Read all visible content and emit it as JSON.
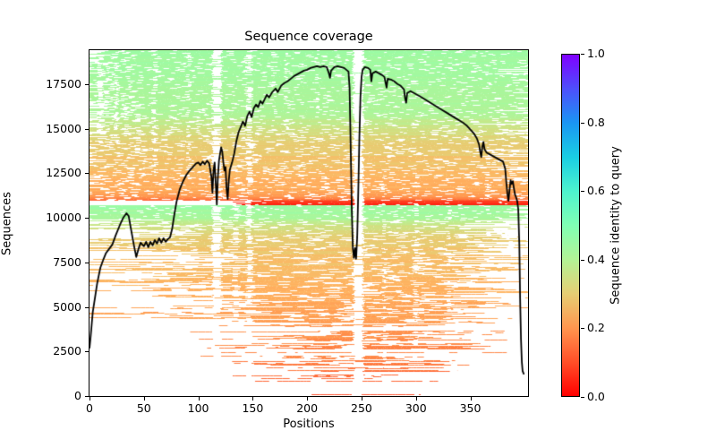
{
  "figure": {
    "title": "Sequence coverage",
    "background": "#ffffff",
    "text_color": "#000000"
  },
  "axes": {
    "xlabel": "Positions",
    "ylabel": "Sequences",
    "x_ticks": [
      0,
      50,
      100,
      150,
      200,
      250,
      300,
      350
    ],
    "y_ticks": [
      0,
      2500,
      5000,
      7500,
      10000,
      12500,
      15000,
      17500
    ],
    "xlim": [
      0,
      403
    ],
    "ylim": [
      0,
      19400
    ],
    "spine_color": "#000000"
  },
  "colorbar": {
    "label": "Sequence identity to query",
    "tick_labels": [
      "0.0",
      "0.2",
      "0.4",
      "0.6",
      "0.8",
      "1.0"
    ],
    "tick_values": [
      0.0,
      0.2,
      0.4,
      0.6,
      0.8,
      1.0
    ],
    "cmap": "rainbow_r",
    "stops": [
      {
        "t": 0.0,
        "color": "#ff0000"
      },
      {
        "t": 0.1,
        "color": "#ff4f28"
      },
      {
        "t": 0.2,
        "color": "#ff964f"
      },
      {
        "t": 0.3,
        "color": "#e6ce74"
      },
      {
        "t": 0.4,
        "color": "#b3f396"
      },
      {
        "t": 0.5,
        "color": "#80ffb4"
      },
      {
        "t": 0.6,
        "color": "#4df3ce"
      },
      {
        "t": 0.7,
        "color": "#1acee3"
      },
      {
        "t": 0.8,
        "color": "#1a96f3"
      },
      {
        "t": 0.9,
        "color": "#4d4ffc"
      },
      {
        "t": 1.0,
        "color": "#8000ff"
      }
    ]
  },
  "chart_data": {
    "type": "heatmap",
    "title": "Sequence coverage",
    "xlabel": "Positions",
    "ylabel": "Sequences",
    "xlim": [
      0,
      403
    ],
    "ylim": [
      0,
      19400
    ],
    "n_sequences": 19400,
    "query_length": 403,
    "coverage_line": {
      "color": "#000000",
      "width": 1.8,
      "points": [
        [
          0,
          2700
        ],
        [
          1,
          3300
        ],
        [
          3,
          4700
        ],
        [
          5,
          5500
        ],
        [
          7,
          6300
        ],
        [
          10,
          7200
        ],
        [
          13,
          7700
        ],
        [
          15,
          8000
        ],
        [
          18,
          8250
        ],
        [
          21,
          8500
        ],
        [
          24,
          9000
        ],
        [
          28,
          9600
        ],
        [
          31,
          10000
        ],
        [
          34,
          10250
        ],
        [
          36,
          10100
        ],
        [
          38,
          9400
        ],
        [
          41,
          8400
        ],
        [
          43,
          7800
        ],
        [
          45,
          8250
        ],
        [
          47,
          8600
        ],
        [
          50,
          8400
        ],
        [
          52,
          8650
        ],
        [
          54,
          8350
        ],
        [
          56,
          8650
        ],
        [
          58,
          8450
        ],
        [
          60,
          8750
        ],
        [
          62,
          8550
        ],
        [
          64,
          8850
        ],
        [
          66,
          8600
        ],
        [
          68,
          8850
        ],
        [
          70,
          8650
        ],
        [
          72,
          8800
        ],
        [
          74,
          8900
        ],
        [
          76,
          9400
        ],
        [
          78,
          10200
        ],
        [
          80,
          10900
        ],
        [
          83,
          11600
        ],
        [
          86,
          12050
        ],
        [
          89,
          12400
        ],
        [
          92,
          12650
        ],
        [
          95,
          12850
        ],
        [
          98,
          13050
        ],
        [
          100,
          13100
        ],
        [
          102,
          12950
        ],
        [
          104,
          13150
        ],
        [
          106,
          13000
        ],
        [
          108,
          13200
        ],
        [
          110,
          13050
        ],
        [
          112,
          12300
        ],
        [
          113,
          11400
        ],
        [
          114,
          12700
        ],
        [
          115,
          13100
        ],
        [
          116,
          11900
        ],
        [
          117,
          10750
        ],
        [
          118,
          12300
        ],
        [
          119,
          13200
        ],
        [
          120,
          13600
        ],
        [
          121,
          13950
        ],
        [
          122,
          13700
        ],
        [
          123,
          13100
        ],
        [
          124,
          12650
        ],
        [
          125,
          12850
        ],
        [
          126,
          11600
        ],
        [
          127,
          11050
        ],
        [
          128,
          12100
        ],
        [
          129,
          12700
        ],
        [
          131,
          13100
        ],
        [
          133,
          13600
        ],
        [
          135,
          14300
        ],
        [
          137,
          14800
        ],
        [
          139,
          15100
        ],
        [
          141,
          15400
        ],
        [
          143,
          15150
        ],
        [
          145,
          15700
        ],
        [
          147,
          15950
        ],
        [
          149,
          15650
        ],
        [
          151,
          16150
        ],
        [
          153,
          16350
        ],
        [
          155,
          16200
        ],
        [
          157,
          16550
        ],
        [
          159,
          16400
        ],
        [
          161,
          16650
        ],
        [
          163,
          16900
        ],
        [
          165,
          16750
        ],
        [
          168,
          17050
        ],
        [
          171,
          17250
        ],
        [
          173,
          17050
        ],
        [
          176,
          17400
        ],
        [
          179,
          17550
        ],
        [
          182,
          17650
        ],
        [
          185,
          17800
        ],
        [
          188,
          17950
        ],
        [
          191,
          18050
        ],
        [
          194,
          18150
        ],
        [
          197,
          18250
        ],
        [
          200,
          18300
        ],
        [
          203,
          18400
        ],
        [
          206,
          18450
        ],
        [
          209,
          18500
        ],
        [
          212,
          18450
        ],
        [
          215,
          18500
        ],
        [
          218,
          18450
        ],
        [
          220,
          18100
        ],
        [
          221,
          17850
        ],
        [
          222,
          18250
        ],
        [
          225,
          18450
        ],
        [
          228,
          18500
        ],
        [
          231,
          18450
        ],
        [
          234,
          18400
        ],
        [
          236,
          18300
        ],
        [
          238,
          18200
        ],
        [
          239,
          17300
        ],
        [
          240,
          14000
        ],
        [
          241,
          10500
        ],
        [
          242,
          8300
        ],
        [
          243,
          7750
        ],
        [
          244,
          8300
        ],
        [
          245,
          7700
        ],
        [
          246,
          8900
        ],
        [
          247,
          11500
        ],
        [
          248,
          14500
        ],
        [
          249,
          16800
        ],
        [
          250,
          17900
        ],
        [
          251,
          18300
        ],
        [
          253,
          18450
        ],
        [
          256,
          18400
        ],
        [
          258,
          18300
        ],
        [
          259,
          17650
        ],
        [
          260,
          18100
        ],
        [
          263,
          18200
        ],
        [
          266,
          18100
        ],
        [
          269,
          18000
        ],
        [
          271,
          17900
        ],
        [
          273,
          17300
        ],
        [
          274,
          17800
        ],
        [
          277,
          17750
        ],
        [
          280,
          17650
        ],
        [
          283,
          17500
        ],
        [
          286,
          17400
        ],
        [
          289,
          17200
        ],
        [
          290,
          16700
        ],
        [
          291,
          16450
        ],
        [
          292,
          17000
        ],
        [
          295,
          17100
        ],
        [
          298,
          17000
        ],
        [
          301,
          16900
        ],
        [
          304,
          16800
        ],
        [
          308,
          16650
        ],
        [
          312,
          16500
        ],
        [
          316,
          16350
        ],
        [
          320,
          16200
        ],
        [
          324,
          16050
        ],
        [
          328,
          15900
        ],
        [
          332,
          15750
        ],
        [
          336,
          15600
        ],
        [
          340,
          15450
        ],
        [
          344,
          15300
        ],
        [
          347,
          15150
        ],
        [
          350,
          14950
        ],
        [
          353,
          14750
        ],
        [
          356,
          14450
        ],
        [
          358,
          14100
        ],
        [
          359,
          13700
        ],
        [
          360,
          13400
        ],
        [
          361,
          14000
        ],
        [
          362,
          14250
        ],
        [
          363,
          13850
        ],
        [
          365,
          13650
        ],
        [
          368,
          13550
        ],
        [
          371,
          13450
        ],
        [
          374,
          13350
        ],
        [
          377,
          13250
        ],
        [
          380,
          13150
        ],
        [
          382,
          12750
        ],
        [
          383,
          12000
        ],
        [
          384,
          11350
        ],
        [
          385,
          10950
        ],
        [
          386,
          11550
        ],
        [
          387,
          12100
        ],
        [
          388,
          11900
        ],
        [
          389,
          12050
        ],
        [
          390,
          11650
        ],
        [
          391,
          11300
        ],
        [
          392,
          11150
        ],
        [
          393,
          10950
        ],
        [
          394,
          10500
        ],
        [
          395,
          8500
        ],
        [
          395.7,
          5500
        ],
        [
          396.5,
          3200
        ],
        [
          397.3,
          1900
        ],
        [
          398,
          1400
        ],
        [
          399,
          1250
        ]
      ]
    },
    "msa_render_model": {
      "seed": 7,
      "identity_profiles": {
        "a": [
          [
            19400,
            0.44
          ],
          [
            15800,
            0.41
          ],
          [
            15100,
            0.35
          ],
          [
            14100,
            0.3
          ],
          [
            12800,
            0.27
          ],
          [
            11600,
            0.24
          ],
          [
            11100,
            0.19
          ],
          [
            10950,
            0.1
          ]
        ],
        "red": [
          [
            10950,
            0.07
          ],
          [
            10700,
            0.04
          ]
        ],
        "b": [
          [
            10700,
            0.45
          ],
          [
            9950,
            0.42
          ],
          [
            9600,
            0.35
          ],
          [
            8900,
            0.3
          ],
          [
            7600,
            0.27
          ],
          [
            5600,
            0.24
          ],
          [
            3600,
            0.2
          ],
          [
            1800,
            0.16
          ],
          [
            700,
            0.12
          ],
          [
            0,
            0.1
          ]
        ]
      },
      "bands": [
        {
          "s0": 15500,
          "s1": 19400,
          "prof": "a",
          "wf": 0.1,
          "gap": [
            2,
            7
          ],
          "run": [
            4,
            30
          ],
          "sz": 0.55,
          "sr": [
            0,
            25
          ],
          "ef": 0.85,
          "er": [
            370,
            403
          ],
          "ab": 0,
          "leftx": 3
        },
        {
          "s0": 10950,
          "s1": 15500,
          "prof": "a",
          "wf": 0.15,
          "gap": [
            2,
            9
          ],
          "run": [
            3,
            24
          ],
          "sz": 0.6,
          "sr": [
            0,
            20
          ],
          "ef": 0.72,
          "er": [
            352,
            403
          ],
          "ab": 0,
          "leftx": 1.6
        },
        {
          "s0": 10700,
          "s1": 10950,
          "prof": "red",
          "wf": 0.05,
          "gap": [
            2,
            5
          ],
          "run": [
            6,
            40
          ],
          "sz": 0,
          "sr": [
            110,
            160
          ],
          "ef": 1,
          "er": [
            403,
            403
          ],
          "ab": 0,
          "leftx": 1
        },
        {
          "s0": 9900,
          "s1": 10700,
          "prof": "b",
          "wf": 0.08,
          "gap": [
            2,
            6
          ],
          "run": [
            6,
            40
          ],
          "sz": 0.5,
          "sr": [
            0,
            10
          ],
          "ef": 0.5,
          "er": [
            378,
            403
          ],
          "ab": 0,
          "leftx": 1
        },
        {
          "s0": 8000,
          "s1": 9900,
          "prof": "b",
          "wf": 0.17,
          "gap": [
            3,
            14
          ],
          "run": [
            3,
            20
          ],
          "sz": 0.4,
          "sr": [
            0,
            110
          ],
          "ef": 0.3,
          "er": [
            335,
            403
          ],
          "ab": 0,
          "leftx": 1
        },
        {
          "s0": 6000,
          "s1": 8000,
          "prof": "b",
          "wf": 0.2,
          "gap": [
            4,
            18
          ],
          "run": [
            3,
            16
          ],
          "sz": 0.22,
          "sr": [
            0,
            160
          ],
          "ef": 0.15,
          "er": [
            318,
            400
          ],
          "ab": 0.03,
          "leftx": 1
        },
        {
          "s0": 4000,
          "s1": 6000,
          "prof": "b",
          "wf": 0.24,
          "gap": [
            5,
            22
          ],
          "run": [
            3,
            14
          ],
          "sz": 0.1,
          "sr": [
            40,
            205
          ],
          "ef": 0.08,
          "er": [
            298,
            397
          ],
          "ab": 0.07,
          "leftx": 1
        },
        {
          "s0": 2200,
          "s1": 4000,
          "prof": "b",
          "wf": 0.27,
          "gap": [
            5,
            25
          ],
          "run": [
            2,
            12
          ],
          "sz": 0.04,
          "sr": [
            90,
            235
          ],
          "ef": 0.03,
          "er": [
            275,
            388
          ],
          "ab": 0.15,
          "leftx": 1
        },
        {
          "s0": 900,
          "s1": 2200,
          "prof": "b",
          "wf": 0.3,
          "gap": [
            5,
            22
          ],
          "run": [
            2,
            10
          ],
          "sz": 0.01,
          "sr": [
            130,
            240
          ],
          "ef": 0.01,
          "er": [
            255,
            350
          ],
          "ab": 0.3,
          "leftx": 1
        },
        {
          "s0": 0,
          "s1": 900,
          "prof": "b",
          "wf": 0.3,
          "gap": [
            4,
            18
          ],
          "run": [
            2,
            10
          ],
          "sz": 0,
          "sr": [
            150,
            235
          ],
          "ef": 0,
          "er": [
            245,
            325
          ],
          "ab": 0.55,
          "leftx": 1
        }
      ],
      "gap_streaks": [
        [
          10,
          4,
          0.45,
          14000,
          19400
        ],
        [
          25,
          3,
          0.4,
          14000,
          19400
        ],
        [
          33,
          4,
          0.3,
          14500,
          16500
        ],
        [
          45,
          5,
          0.35,
          13500,
          16500
        ],
        [
          60,
          4,
          0.4,
          12500,
          19400
        ],
        [
          91,
          3,
          0.3,
          12000,
          19400
        ],
        [
          117,
          8,
          0.7,
          0,
          19400
        ],
        [
          135,
          5,
          0.35,
          4000,
          11000
        ],
        [
          147,
          5,
          0.5,
          0,
          19400
        ],
        [
          170,
          3,
          0.25,
          15000,
          19400
        ],
        [
          181,
          3,
          0.25,
          15000,
          19400
        ],
        [
          210,
          3,
          0.22,
          15500,
          19400
        ],
        [
          247,
          9,
          0.88,
          0,
          19400
        ],
        [
          271,
          3,
          0.25,
          0,
          12500
        ],
        [
          300,
          4,
          0.28,
          0,
          12500
        ],
        [
          331,
          3,
          0.2,
          0,
          10500
        ],
        [
          366,
          4,
          0.25,
          9000,
          13500
        ]
      ]
    }
  }
}
